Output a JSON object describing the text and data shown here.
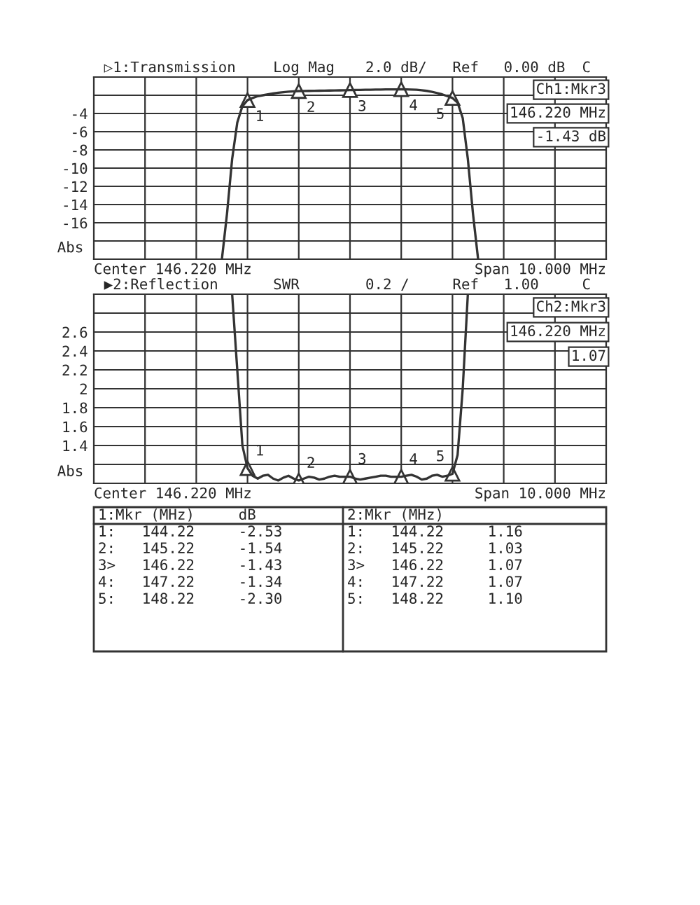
{
  "chart_data": [
    {
      "type": "line",
      "title": "▷1:Transmission",
      "ylabel": "Abs",
      "categories": [
        null,
        null,
        null,
        null,
        null,
        null,
        null,
        null,
        null,
        null,
        null,
        null,
        null,
        null,
        null,
        null,
        null,
        null,
        null,
        null,
        null,
        null,
        null,
        null,
        null,
        null,
        null,
        null,
        null,
        null,
        null,
        null,
        null,
        null,
        null,
        null,
        null,
        null,
        null,
        null,
        null,
        null,
        null,
        null,
        null,
        null,
        null,
        null,
        null,
        null,
        null,
        null,
        null,
        null,
        null,
        null,
        null,
        null,
        null,
        null,
        null,
        null,
        null,
        null,
        null,
        null,
        null,
        null,
        null,
        null,
        null,
        null,
        null,
        null,
        null,
        null,
        null,
        null,
        null,
        null,
        null,
        null,
        null,
        null,
        null,
        null,
        null,
        null,
        null,
        null,
        null,
        null,
        null,
        null,
        null,
        null,
        null,
        null,
        null,
        null,
        null
      ],
      "ylim": [
        -20,
        0
      ],
      "yticks": [
        {
          "value": 0,
          "label": null
        },
        {
          "value": -2,
          "label": null
        },
        -4,
        -6,
        -8,
        -10,
        -12,
        -14,
        -16,
        {
          "value": -18,
          "label": null
        },
        {
          "value": -20,
          "label": null
        }
      ],
      "tick_labels": "y",
      "grid": true,
      "series": [
        {
          "color": "#333333",
          "values": [
            null,
            null,
            null,
            null,
            null,
            null,
            null,
            null,
            null,
            null,
            null,
            null,
            null,
            null,
            null,
            null,
            null,
            null,
            null,
            null,
            null,
            null,
            null,
            null,
            null,
            -20,
            -15,
            -9,
            -5,
            -3.2,
            -2.53,
            -2.3,
            -2.1,
            -2.0,
            -1.9,
            -1.8,
            -1.72,
            -1.66,
            -1.6,
            -1.57,
            -1.54,
            -1.53,
            -1.52,
            -1.51,
            -1.5,
            -1.49,
            -1.48,
            -1.47,
            -1.46,
            -1.45,
            -1.43,
            -1.42,
            -1.41,
            -1.4,
            -1.39,
            -1.38,
            -1.37,
            -1.36,
            -1.35,
            -1.35,
            -1.34,
            -1.35,
            -1.37,
            -1.4,
            -1.45,
            -1.52,
            -1.62,
            -1.75,
            -1.9,
            -2.1,
            -2.3,
            -2.8,
            -4.5,
            -9,
            -15,
            -20,
            null,
            null,
            null,
            null,
            null,
            null,
            null,
            null,
            null,
            null,
            null,
            null,
            null,
            null,
            null,
            null,
            null,
            null,
            null,
            null,
            null,
            null,
            null,
            null,
            null
          ]
        }
      ],
      "annotations": [
        "Log Mag",
        "2.0 dB/",
        "Ref",
        "0.00 dB",
        "C",
        "Ch1:Mkr3",
        "146.220 MHz",
        "-1.43 dB",
        "Center 146.220 MHz",
        "Span 10.000 MHz",
        "1:Mkr (MHz)     dB",
        "1:   144.22     -2.53",
        "2:   145.22     -1.54",
        "3>   146.22     -1.43",
        "4:   147.22     -1.34",
        "5:   148.22     -2.30",
        {
          "text": "1",
          "y": -2.53
        },
        {
          "text": "2",
          "y": -1.54
        },
        {
          "text": "3",
          "y": -1.43
        },
        {
          "text": "4",
          "y": -1.34
        },
        {
          "text": "5",
          "y": -2.3
        }
      ]
    },
    {
      "type": "line",
      "title": "▶2:Reflection",
      "ylabel": "Abs",
      "categories": [
        null,
        null,
        null,
        null,
        null,
        null,
        null,
        null,
        null,
        null,
        null,
        null,
        null,
        null,
        null,
        null,
        null,
        null,
        null,
        null,
        null,
        null,
        null,
        null,
        null,
        null,
        null,
        null,
        null,
        null,
        null,
        null,
        null,
        null,
        null,
        null,
        null,
        null,
        null,
        null,
        null,
        null,
        null,
        null,
        null,
        null,
        null,
        null,
        null,
        null,
        null,
        null,
        null,
        null,
        null,
        null,
        null,
        null,
        null,
        null,
        null,
        null,
        null,
        null,
        null,
        null,
        null,
        null,
        null,
        null,
        null,
        null,
        null,
        null,
        null,
        null,
        null,
        null,
        null,
        null,
        null,
        null,
        null,
        null,
        null,
        null,
        null,
        null,
        null,
        null,
        null,
        null,
        null,
        null,
        null,
        null,
        null,
        null,
        null,
        null,
        null
      ],
      "ylim": [
        1.0,
        3.0
      ],
      "yticks": [
        {
          "value": 1.0,
          "label": null
        },
        {
          "value": 1.2,
          "label": null
        },
        1.4,
        1.6,
        1.8,
        {
          "value": 2.0,
          "label": "2"
        },
        2.2,
        2.4,
        2.6,
        {
          "value": 2.8,
          "label": null
        },
        {
          "value": 3.0,
          "label": null
        }
      ],
      "tick_labels": "y",
      "grid": true,
      "series": [
        {
          "color": "#333333",
          "values": [
            null,
            null,
            null,
            null,
            null,
            null,
            null,
            null,
            null,
            null,
            null,
            null,
            null,
            null,
            null,
            null,
            null,
            null,
            null,
            null,
            null,
            null,
            null,
            null,
            null,
            null,
            null,
            3.0,
            2.2,
            1.4,
            1.16,
            1.08,
            1.05,
            1.08,
            1.09,
            1.05,
            1.03,
            1.06,
            1.08,
            1.05,
            1.03,
            1.05,
            1.07,
            1.06,
            1.04,
            1.05,
            1.07,
            1.08,
            1.07,
            1.07,
            1.07,
            1.05,
            1.04,
            1.05,
            1.06,
            1.07,
            1.08,
            1.08,
            1.07,
            1.07,
            1.07,
            1.08,
            1.09,
            1.07,
            1.04,
            1.05,
            1.08,
            1.09,
            1.07,
            1.08,
            1.1,
            1.3,
            2.0,
            3.0,
            null,
            null,
            null,
            null,
            null,
            null,
            null,
            null,
            null,
            null,
            null,
            null,
            null,
            null,
            null,
            null,
            null,
            null,
            null,
            null,
            null,
            null,
            null,
            null,
            null,
            null,
            null
          ]
        }
      ],
      "annotations": [
        "SWR",
        "0.2 /",
        "Ref",
        "1.00",
        "C",
        "Ch2:Mkr3",
        "146.220 MHz",
        "1.07",
        "Center 146.220 MHz",
        "Span 10.000 MHz",
        "2:Mkr (MHz)",
        "1:   144.22     1.16",
        "2:   145.22     1.03",
        "3>   146.22     1.07",
        "4:   147.22     1.07",
        "5:   148.22     1.10",
        {
          "text": "1",
          "y": 1.16
        },
        {
          "text": "2",
          "y": 1.03
        },
        {
          "text": "3",
          "y": 1.07
        },
        {
          "text": "4",
          "y": 1.07
        },
        {
          "text": "5",
          "y": 1.1
        }
      ]
    }
  ]
}
